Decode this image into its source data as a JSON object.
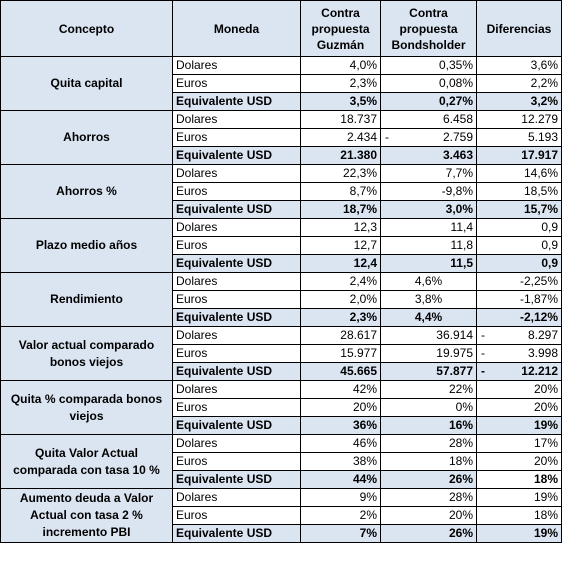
{
  "headers": {
    "concepto": "Concepto",
    "moneda": "Moneda",
    "guzman": "Contra propuesta Guzmán",
    "bondsholder": "Contra propuesta Bondsholder",
    "diferencias": "Diferencias"
  },
  "groups": [
    {
      "concepto": "Quita capital",
      "rows": [
        {
          "moneda": "Dolares",
          "guzman": "4,0%",
          "bonds": "0,35%",
          "diff": "3,6%"
        },
        {
          "moneda": "Euros",
          "guzman": "2,3%",
          "bonds": "0,08%",
          "diff": "2,2%"
        },
        {
          "moneda": "Equivalente USD",
          "guzman": "3,5%",
          "bonds": "0,27%",
          "diff": "3,2%"
        }
      ]
    },
    {
      "concepto": "Ahorros",
      "rows": [
        {
          "moneda": "Dolares",
          "guzman": "18.737",
          "bonds": "6.458",
          "diff": "12.279"
        },
        {
          "moneda": "Euros",
          "guzman": "2.434",
          "bonds": "2.759",
          "bonds_sign": "-",
          "diff": "5.193"
        },
        {
          "moneda": "Equivalente USD",
          "guzman": "21.380",
          "bonds": "3.463",
          "diff": "17.917"
        }
      ]
    },
    {
      "concepto": "Ahorros %",
      "rows": [
        {
          "moneda": "Dolares",
          "guzman": "22,3%",
          "bonds": "7,7%",
          "diff": "14,6%"
        },
        {
          "moneda": "Euros",
          "guzman": "8,7%",
          "bonds": "-9,8%",
          "diff": "18,5%"
        },
        {
          "moneda": "Equivalente USD",
          "guzman": "18,7%",
          "bonds": "3,0%",
          "diff": "15,7%"
        }
      ]
    },
    {
      "concepto": "Plazo medio años",
      "rows": [
        {
          "moneda": "Dolares",
          "guzman": "12,3",
          "bonds": "11,4",
          "diff": "0,9"
        },
        {
          "moneda": "Euros",
          "guzman": "12,7",
          "bonds": "11,8",
          "diff": "0,9"
        },
        {
          "moneda": "Equivalente USD",
          "guzman": "12,4",
          "bonds": "11,5",
          "diff": "0,9"
        }
      ]
    },
    {
      "concepto": "Rendimiento",
      "rows": [
        {
          "moneda": "Dolares",
          "guzman": "2,4%",
          "bonds": "4,6%",
          "diff": "-2,25%"
        },
        {
          "moneda": "Euros",
          "guzman": "2,0%",
          "bonds": "3,8%",
          "diff": "-1,87%"
        },
        {
          "moneda": "Equivalente USD",
          "guzman": "2,3%",
          "bonds": "4,4%",
          "diff": "-2,12%"
        }
      ]
    },
    {
      "concepto": "Valor actual comparado bonos viejos",
      "rows": [
        {
          "moneda": "Dolares",
          "guzman": "28.617",
          "bonds": "36.914",
          "diff": "8.297",
          "diff_sign": "-"
        },
        {
          "moneda": "Euros",
          "guzman": "15.977",
          "bonds": "19.975",
          "diff": "3.998",
          "diff_sign": "-"
        },
        {
          "moneda": "Equivalente USD",
          "guzman": "45.665",
          "bonds": "57.877",
          "diff": "12.212",
          "diff_sign": "-"
        }
      ]
    },
    {
      "concepto": "Quita % comparada bonos viejos",
      "rows": [
        {
          "moneda": "Dolares",
          "guzman": "42%",
          "bonds": "22%",
          "diff": "20%"
        },
        {
          "moneda": "Euros",
          "guzman": "20%",
          "bonds": "0%",
          "diff": "20%"
        },
        {
          "moneda": "Equivalente USD",
          "guzman": "36%",
          "bonds": "16%",
          "diff": "19%"
        }
      ]
    },
    {
      "concepto": "Quita Valor Actual comparada con tasa 10 %",
      "rows": [
        {
          "moneda": "Dolares",
          "guzman": "46%",
          "bonds": "28%",
          "diff": "17%"
        },
        {
          "moneda": "Euros",
          "guzman": "38%",
          "bonds": "18%",
          "diff": "20%"
        },
        {
          "moneda": "Equivalente USD",
          "guzman": "44%",
          "bonds": "26%",
          "diff": "18%"
        }
      ]
    },
    {
      "concepto": "Aumento deuda a Valor Actual con tasa 2 % incremento PBI",
      "rows": [
        {
          "moneda": "Dolares",
          "guzman": "9%",
          "bonds": "28%",
          "diff": "19%"
        },
        {
          "moneda": "Euros",
          "guzman": "2%",
          "bonds": "20%",
          "diff": "18%"
        },
        {
          "moneda": "Equivalente USD",
          "guzman": "7%",
          "bonds": "26%",
          "diff": "19%"
        }
      ]
    }
  ]
}
